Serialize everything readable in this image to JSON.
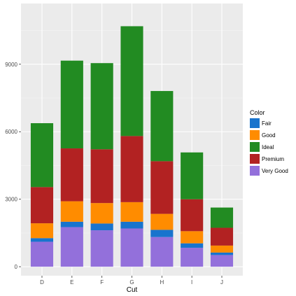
{
  "chart_data": {
    "type": "bar",
    "stacked": true,
    "xlabel": "Cut",
    "ylabel": "",
    "ylim": [
      -400,
      11700
    ],
    "yticks": [
      0,
      3000,
      6000,
      9000
    ],
    "ytick_labels": [
      "0",
      "3000",
      "6000",
      "9000"
    ],
    "grid": true,
    "legend_position": "right",
    "legend_title": "Color",
    "categories": [
      "D",
      "E",
      "F",
      "G",
      "H",
      "I",
      "J"
    ],
    "series": [
      {
        "name": "Very Good",
        "color": "#9370DB",
        "values": [
          1110,
          1760,
          1620,
          1700,
          1320,
          840,
          520
        ]
      },
      {
        "name": "Fair",
        "color": "#1874CD",
        "values": [
          160,
          240,
          300,
          300,
          320,
          200,
          110
        ]
      },
      {
        "name": "Good",
        "color": "#FF8C00",
        "values": [
          660,
          910,
          910,
          870,
          710,
          540,
          310
        ]
      },
      {
        "name": "Premium",
        "color": "#B22222",
        "values": [
          1610,
          2350,
          2390,
          2940,
          2340,
          1420,
          790
        ]
      },
      {
        "name": "Ideal",
        "color": "#228B22",
        "values": [
          2840,
          3900,
          3830,
          4880,
          3120,
          2080,
          900
        ]
      }
    ],
    "legend_order": [
      "Fair",
      "Good",
      "Ideal",
      "Premium",
      "Very Good"
    ]
  }
}
